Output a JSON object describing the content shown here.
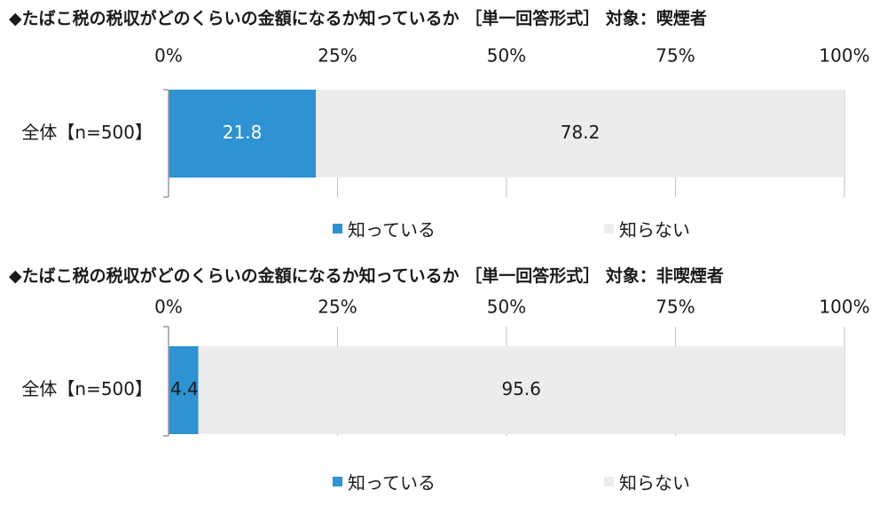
{
  "colors": {
    "known": "#2e92d3",
    "unknown": "#ececec",
    "grid": "#bfbfbf",
    "axis": "#9a9a9a"
  },
  "chart_data": [
    {
      "type": "bar",
      "orientation": "horizontal",
      "stacked": true,
      "title": "◆たばこ税の税収がどのくらいの金額になるか知っているか ［単一回答形式］ 対象：喫煙者",
      "categories": [
        "全体【n=500】"
      ],
      "x_ticks": [
        "0%",
        "25%",
        "50%",
        "75%",
        "100%"
      ],
      "xlim": [
        0,
        100
      ],
      "grid": true,
      "legend_position": "bottom",
      "series": [
        {
          "name": "知っている",
          "values": [
            21.8
          ],
          "labels": [
            "21.8"
          ],
          "color": "#2e92d3"
        },
        {
          "name": "知らない",
          "values": [
            78.2
          ],
          "labels": [
            "78.2"
          ],
          "color": "#ececec"
        }
      ]
    },
    {
      "type": "bar",
      "orientation": "horizontal",
      "stacked": true,
      "title": "◆たばこ税の税収がどのくらいの金額になるか知っているか ［単一回答形式］ 対象：非喫煙者",
      "categories": [
        "全体【n=500】"
      ],
      "x_ticks": [
        "0%",
        "25%",
        "50%",
        "75%",
        "100%"
      ],
      "xlim": [
        0,
        100
      ],
      "grid": true,
      "legend_position": "bottom",
      "series": [
        {
          "name": "知っている",
          "values": [
            4.4
          ],
          "labels": [
            "4.4"
          ],
          "color": "#2e92d3"
        },
        {
          "name": "知らない",
          "values": [
            95.6
          ],
          "labels": [
            "95.6"
          ],
          "color": "#ececec"
        }
      ]
    }
  ]
}
